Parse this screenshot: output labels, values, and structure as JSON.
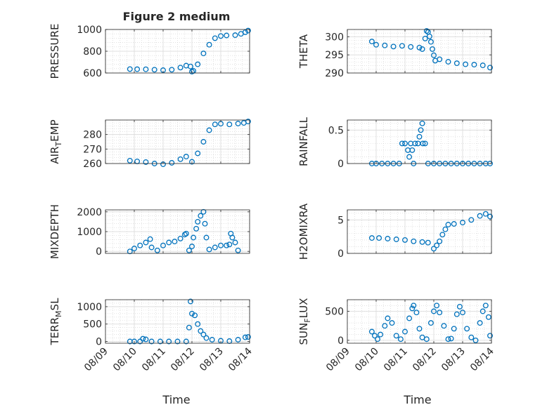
{
  "figure": {
    "title": "Figure 2 medium",
    "xlabel": "Time",
    "marker_color": "#0072BD",
    "x_ticks": [
      "08/09",
      "08/10",
      "08/11",
      "08/12",
      "08/13",
      "08/14"
    ]
  },
  "chart_data": [
    {
      "type": "scatter",
      "title": "Figure 2 medium",
      "ylabel": "PRESSURE",
      "xlabel": "",
      "grid": true,
      "x_range": [
        0,
        5
      ],
      "ylim": [
        600,
        1000
      ],
      "yticks": [
        600,
        800,
        1000
      ],
      "series": [
        {
          "values": [
            [
              0.85,
              636
            ],
            [
              1.1,
              635
            ],
            [
              1.4,
              634
            ],
            [
              1.7,
              630
            ],
            [
              2.0,
              626
            ],
            [
              2.3,
              630
            ],
            [
              2.6,
              650
            ],
            [
              2.8,
              668
            ],
            [
              2.95,
              660
            ],
            [
              3.0,
              612
            ],
            [
              3.05,
              620
            ],
            [
              3.2,
              680
            ],
            [
              3.4,
              780
            ],
            [
              3.6,
              860
            ],
            [
              3.8,
              920
            ],
            [
              4.0,
              940
            ],
            [
              4.2,
              945
            ],
            [
              4.5,
              948
            ],
            [
              4.7,
              960
            ],
            [
              4.85,
              975
            ],
            [
              4.95,
              990
            ]
          ]
        }
      ]
    },
    {
      "type": "scatter",
      "ylabel": "THETA",
      "xlabel": "",
      "grid": true,
      "x_range": [
        0,
        5
      ],
      "ylim": [
        290,
        302
      ],
      "yticks": [
        290,
        295,
        300
      ],
      "series": [
        {
          "values": [
            [
              0.85,
              298.7
            ],
            [
              1.0,
              297.8
            ],
            [
              1.3,
              297.6
            ],
            [
              1.6,
              297.3
            ],
            [
              1.9,
              297.5
            ],
            [
              2.2,
              297.2
            ],
            [
              2.5,
              297.0
            ],
            [
              2.6,
              296.6
            ],
            [
              2.7,
              299.5
            ],
            [
              2.75,
              301.6
            ],
            [
              2.8,
              301.3
            ],
            [
              2.85,
              300.1
            ],
            [
              2.9,
              298.6
            ],
            [
              2.95,
              296.6
            ],
            [
              3.0,
              294.9
            ],
            [
              3.05,
              293.4
            ],
            [
              3.2,
              293.8
            ],
            [
              3.5,
              293.1
            ],
            [
              3.8,
              292.7
            ],
            [
              4.1,
              292.4
            ],
            [
              4.4,
              292.3
            ],
            [
              4.7,
              292.1
            ],
            [
              4.95,
              291.5
            ]
          ]
        }
      ]
    },
    {
      "type": "scatter",
      "ylabel": "AIR_TEMP",
      "xlabel": "",
      "grid": true,
      "x_range": [
        0,
        5
      ],
      "ylim": [
        260,
        290
      ],
      "yticks": [
        260,
        270,
        280
      ],
      "series": [
        {
          "values": [
            [
              0.85,
              262
            ],
            [
              1.1,
              261.5
            ],
            [
              1.4,
              261
            ],
            [
              1.7,
              260
            ],
            [
              2.0,
              259.5
            ],
            [
              2.3,
              260.5
            ],
            [
              2.6,
              263
            ],
            [
              2.8,
              264.8
            ],
            [
              3.0,
              261.2
            ],
            [
              3.2,
              267
            ],
            [
              3.4,
              275
            ],
            [
              3.6,
              283
            ],
            [
              3.8,
              287
            ],
            [
              4.0,
              287.5
            ],
            [
              4.3,
              287
            ],
            [
              4.6,
              287.6
            ],
            [
              4.8,
              288
            ],
            [
              4.95,
              289
            ]
          ]
        }
      ]
    },
    {
      "type": "scatter",
      "ylabel": "RAINFALL",
      "xlabel": "",
      "grid": true,
      "x_range": [
        0,
        5
      ],
      "ylim": [
        0,
        0.65
      ],
      "yticks": [
        0,
        0.5
      ],
      "series": [
        {
          "values": [
            [
              0.85,
              0
            ],
            [
              1.0,
              0
            ],
            [
              1.2,
              0
            ],
            [
              1.4,
              0
            ],
            [
              1.6,
              0
            ],
            [
              1.8,
              0
            ],
            [
              1.9,
              0.3
            ],
            [
              2.0,
              0.3
            ],
            [
              2.1,
              0.2
            ],
            [
              2.15,
              0.1
            ],
            [
              2.2,
              0.3
            ],
            [
              2.25,
              0.2
            ],
            [
              2.3,
              0
            ],
            [
              2.35,
              0.3
            ],
            [
              2.45,
              0.3
            ],
            [
              2.5,
              0.4
            ],
            [
              2.55,
              0.5
            ],
            [
              2.6,
              0.6
            ],
            [
              2.62,
              0.3
            ],
            [
              2.7,
              0.3
            ],
            [
              2.8,
              0
            ],
            [
              3.0,
              0
            ],
            [
              3.2,
              0
            ],
            [
              3.4,
              0
            ],
            [
              3.6,
              0
            ],
            [
              3.8,
              0
            ],
            [
              4.0,
              0
            ],
            [
              4.2,
              0
            ],
            [
              4.4,
              0
            ],
            [
              4.6,
              0
            ],
            [
              4.8,
              0
            ],
            [
              4.95,
              0
            ]
          ]
        }
      ]
    },
    {
      "type": "scatter",
      "ylabel": "MIXDEPTH",
      "xlabel": "",
      "grid": true,
      "x_range": [
        0,
        5
      ],
      "ylim": [
        -100,
        2100
      ],
      "yticks": [
        0,
        1000,
        2000
      ],
      "series": [
        {
          "values": [
            [
              0.85,
              0
            ],
            [
              1.0,
              150
            ],
            [
              1.2,
              300
            ],
            [
              1.4,
              450
            ],
            [
              1.55,
              620
            ],
            [
              1.6,
              200
            ],
            [
              1.8,
              50
            ],
            [
              2.0,
              300
            ],
            [
              2.2,
              450
            ],
            [
              2.4,
              500
            ],
            [
              2.6,
              650
            ],
            [
              2.75,
              850
            ],
            [
              2.8,
              900
            ],
            [
              2.9,
              50
            ],
            [
              3.0,
              250
            ],
            [
              3.05,
              700
            ],
            [
              3.15,
              1150
            ],
            [
              3.2,
              1500
            ],
            [
              3.3,
              1800
            ],
            [
              3.4,
              2000
            ],
            [
              3.45,
              1400
            ],
            [
              3.5,
              700
            ],
            [
              3.6,
              100
            ],
            [
              3.8,
              200
            ],
            [
              4.0,
              300
            ],
            [
              4.2,
              300
            ],
            [
              4.3,
              350
            ],
            [
              4.35,
              900
            ],
            [
              4.4,
              700
            ],
            [
              4.5,
              450
            ],
            [
              4.6,
              50
            ]
          ]
        }
      ]
    },
    {
      "type": "scatter",
      "ylabel": "H2OMIXRA",
      "xlabel": "",
      "grid": true,
      "x_range": [
        0,
        5
      ],
      "ylim": [
        0,
        6.5
      ],
      "yticks": [
        0,
        5
      ],
      "series": [
        {
          "values": [
            [
              0.85,
              2.3
            ],
            [
              1.1,
              2.3
            ],
            [
              1.4,
              2.2
            ],
            [
              1.7,
              2.1
            ],
            [
              2.0,
              2.0
            ],
            [
              2.3,
              1.8
            ],
            [
              2.6,
              1.7
            ],
            [
              2.8,
              1.6
            ],
            [
              3.0,
              0.7
            ],
            [
              3.1,
              1.2
            ],
            [
              3.2,
              1.8
            ],
            [
              3.3,
              2.8
            ],
            [
              3.4,
              3.6
            ],
            [
              3.5,
              4.3
            ],
            [
              3.7,
              4.4
            ],
            [
              4.0,
              4.6
            ],
            [
              4.3,
              5.0
            ],
            [
              4.6,
              5.6
            ],
            [
              4.8,
              5.9
            ],
            [
              4.95,
              5.5
            ]
          ]
        }
      ]
    },
    {
      "type": "scatter",
      "ylabel": "TERR_MSL",
      "xlabel": "",
      "grid": true,
      "x_range": [
        0,
        5
      ],
      "ylim": [
        -50,
        1200
      ],
      "yticks": [
        0,
        500,
        1000
      ],
      "series": [
        {
          "values": [
            [
              0.85,
              0
            ],
            [
              1.0,
              0
            ],
            [
              1.2,
              0
            ],
            [
              1.3,
              80
            ],
            [
              1.4,
              60
            ],
            [
              1.6,
              0
            ],
            [
              1.9,
              0
            ],
            [
              2.2,
              0
            ],
            [
              2.5,
              0
            ],
            [
              2.8,
              0
            ],
            [
              2.9,
              400
            ],
            [
              2.95,
              1150
            ],
            [
              3.0,
              800
            ],
            [
              3.1,
              750
            ],
            [
              3.2,
              500
            ],
            [
              3.3,
              300
            ],
            [
              3.4,
              200
            ],
            [
              3.5,
              100
            ],
            [
              3.7,
              50
            ],
            [
              4.0,
              20
            ],
            [
              4.3,
              10
            ],
            [
              4.6,
              50
            ],
            [
              4.85,
              120
            ],
            [
              4.95,
              130
            ]
          ]
        }
      ]
    },
    {
      "type": "scatter",
      "ylabel": "SUN_FLUX",
      "xlabel": "",
      "grid": true,
      "x_range": [
        0,
        5
      ],
      "ylim": [
        -50,
        700
      ],
      "yticks": [
        0,
        500
      ],
      "series": [
        {
          "values": [
            [
              0.85,
              150
            ],
            [
              0.95,
              80
            ],
            [
              1.05,
              20
            ],
            [
              1.15,
              100
            ],
            [
              1.3,
              250
            ],
            [
              1.4,
              380
            ],
            [
              1.55,
              300
            ],
            [
              1.7,
              80
            ],
            [
              1.85,
              20
            ],
            [
              2.0,
              150
            ],
            [
              2.15,
              380
            ],
            [
              2.25,
              550
            ],
            [
              2.3,
              600
            ],
            [
              2.4,
              480
            ],
            [
              2.5,
              200
            ],
            [
              2.6,
              50
            ],
            [
              2.75,
              20
            ],
            [
              2.9,
              300
            ],
            [
              3.0,
              500
            ],
            [
              3.1,
              600
            ],
            [
              3.2,
              480
            ],
            [
              3.35,
              250
            ],
            [
              3.5,
              20
            ],
            [
              3.6,
              30
            ],
            [
              3.7,
              200
            ],
            [
              3.8,
              450
            ],
            [
              3.9,
              580
            ],
            [
              4.0,
              480
            ],
            [
              4.15,
              200
            ],
            [
              4.3,
              50
            ],
            [
              4.45,
              0
            ],
            [
              4.6,
              300
            ],
            [
              4.7,
              500
            ],
            [
              4.8,
              600
            ],
            [
              4.9,
              400
            ],
            [
              4.95,
              80
            ]
          ]
        }
      ]
    }
  ]
}
